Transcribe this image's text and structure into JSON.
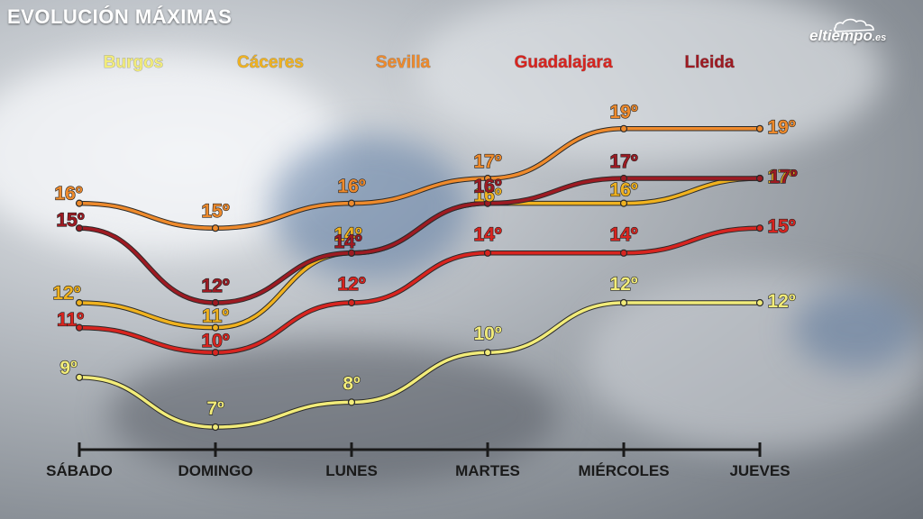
{
  "title": "EVOLUCIÓN MÁXIMAS",
  "logo": {
    "name": "eltiempo",
    "suffix": ".es"
  },
  "colors": {
    "axis": "#1a1a1a"
  },
  "chart_data": {
    "type": "line",
    "categories": [
      "SÁBADO",
      "DOMINGO",
      "LUNES",
      "MARTES",
      "MIÉRCOLES",
      "JUEVES"
    ],
    "ylim": [
      6,
      20
    ],
    "grid": false,
    "legend_placement": "top",
    "series": [
      {
        "name": "Burgos",
        "color": "#f2ec7a",
        "values": [
          9,
          7,
          8,
          10,
          12,
          12
        ],
        "labels": [
          "9º",
          "7º",
          "8º",
          "10º",
          "12º",
          "12º"
        ]
      },
      {
        "name": "Cáceres",
        "color": "#f0b21f",
        "values": [
          12,
          11,
          14,
          16,
          16,
          17
        ],
        "labels": [
          "12º",
          "11º",
          "14º",
          "16º",
          "16º",
          "17º"
        ]
      },
      {
        "name": "Sevilla",
        "color": "#ee8a2c",
        "values": [
          16,
          15,
          16,
          17,
          19,
          19
        ],
        "labels": [
          "16º",
          "15º",
          "16º",
          "17º",
          "19º",
          "19º"
        ]
      },
      {
        "name": "Guadalajara",
        "color": "#d8241f",
        "values": [
          11,
          10,
          12,
          14,
          14,
          15
        ],
        "labels": [
          "11º",
          "10º",
          "12º",
          "14º",
          "14º",
          "15º"
        ]
      },
      {
        "name": "Lleida",
        "color": "#9e1a22",
        "values": [
          15,
          12,
          14,
          16,
          17,
          17
        ],
        "labels": [
          "15º",
          "12º",
          "14º",
          "16º",
          "17º",
          "17º"
        ]
      }
    ]
  }
}
